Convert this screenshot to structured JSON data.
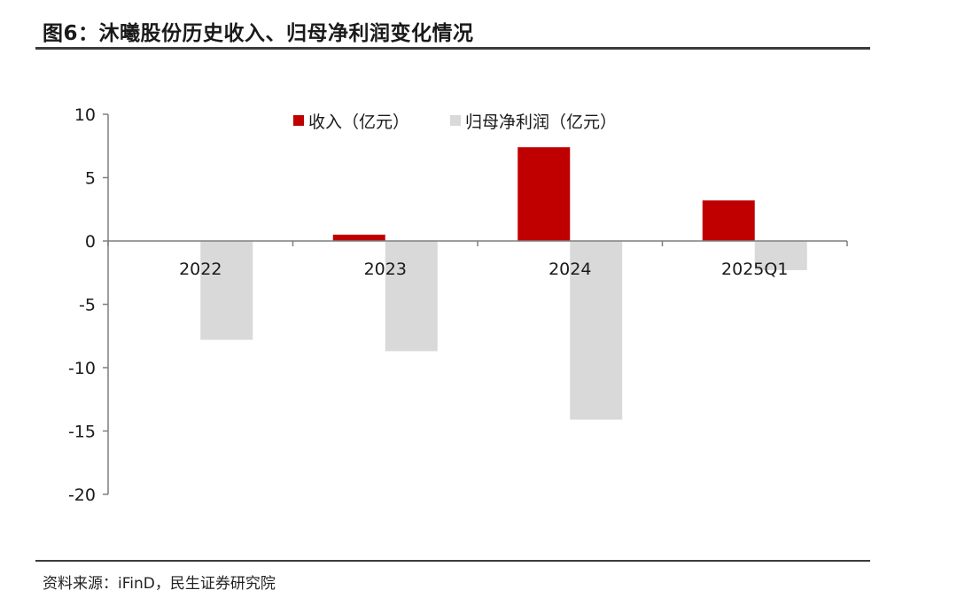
{
  "title": "图6：沐曦股份历史收入、归母净利润变化情况",
  "source": "资料来源：iFinD，民生证券研究院",
  "chart_data": {
    "type": "bar",
    "categories": [
      "2022",
      "2023",
      "2024",
      "2025Q1"
    ],
    "series": [
      {
        "name": "收入（亿元）",
        "color": "#c00000",
        "values": [
          0.0,
          0.5,
          7.4,
          3.2
        ]
      },
      {
        "name": "归母净利润（亿元）",
        "color": "#d9d9d9",
        "values": [
          -7.8,
          -8.7,
          -14.1,
          -2.3
        ]
      }
    ],
    "ylim": [
      -20,
      10
    ],
    "yticks": [
      10,
      5,
      0,
      -5,
      -10,
      -15,
      -20
    ],
    "legend_position": "top-center",
    "grid": false
  }
}
